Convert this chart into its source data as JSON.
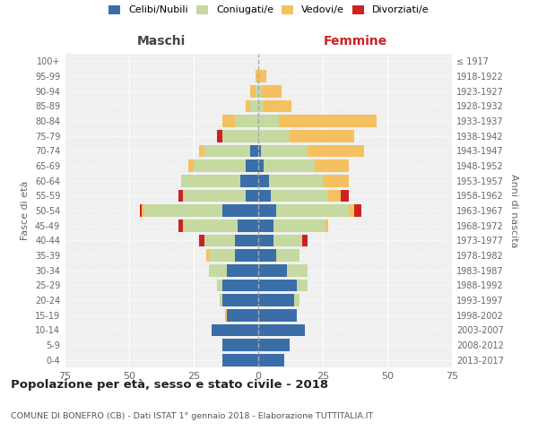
{
  "age_groups": [
    "0-4",
    "5-9",
    "10-14",
    "15-19",
    "20-24",
    "25-29",
    "30-34",
    "35-39",
    "40-44",
    "45-49",
    "50-54",
    "55-59",
    "60-64",
    "65-69",
    "70-74",
    "75-79",
    "80-84",
    "85-89",
    "90-94",
    "95-99",
    "100+"
  ],
  "birth_years": [
    "2013-2017",
    "2008-2012",
    "2003-2007",
    "1998-2002",
    "1993-1997",
    "1988-1992",
    "1983-1987",
    "1978-1982",
    "1973-1977",
    "1968-1972",
    "1963-1967",
    "1958-1962",
    "1953-1957",
    "1948-1952",
    "1943-1947",
    "1938-1942",
    "1933-1937",
    "1928-1932",
    "1923-1927",
    "1918-1922",
    "≤ 1917"
  ],
  "colors": {
    "celibi": "#3a6ea8",
    "coniugati": "#c5d9a0",
    "vedovi": "#f5c060",
    "divorziati": "#cc2222"
  },
  "maschi": {
    "celibi": [
      14,
      14,
      18,
      12,
      14,
      14,
      12,
      9,
      9,
      8,
      14,
      5,
      7,
      5,
      3,
      0,
      0,
      0,
      0,
      0,
      0
    ],
    "coniugati": [
      0,
      0,
      0,
      0,
      1,
      2,
      7,
      10,
      12,
      21,
      30,
      24,
      23,
      20,
      18,
      14,
      9,
      3,
      1,
      0,
      0
    ],
    "vedovi": [
      0,
      0,
      0,
      1,
      0,
      0,
      0,
      1,
      0,
      0,
      1,
      0,
      0,
      2,
      2,
      0,
      5,
      2,
      2,
      1,
      0
    ],
    "divorziati": [
      0,
      0,
      0,
      0,
      0,
      0,
      0,
      0,
      2,
      2,
      1,
      2,
      0,
      0,
      0,
      2,
      0,
      0,
      0,
      0,
      0
    ]
  },
  "femmine": {
    "nubili": [
      10,
      12,
      18,
      15,
      14,
      15,
      11,
      7,
      6,
      6,
      7,
      5,
      4,
      2,
      1,
      0,
      0,
      0,
      0,
      0,
      0
    ],
    "coniugate": [
      0,
      0,
      0,
      0,
      2,
      4,
      8,
      9,
      11,
      20,
      28,
      22,
      21,
      20,
      18,
      12,
      8,
      2,
      1,
      0,
      0
    ],
    "vedove": [
      0,
      0,
      0,
      0,
      0,
      0,
      0,
      0,
      0,
      1,
      2,
      5,
      10,
      13,
      22,
      25,
      38,
      11,
      8,
      3,
      0
    ],
    "divorziate": [
      0,
      0,
      0,
      0,
      0,
      0,
      0,
      0,
      2,
      0,
      3,
      3,
      0,
      0,
      0,
      0,
      0,
      0,
      0,
      0,
      0
    ]
  },
  "title": "Popolazione per età, sesso e stato civile - 2018",
  "subtitle": "COMUNE DI BONEFRO (CB) - Dati ISTAT 1° gennaio 2018 - Elaborazione TUTTITALIA.IT",
  "xlabel_left": "Maschi",
  "xlabel_right": "Femmine",
  "ylabel_left": "Fasce di età",
  "ylabel_right": "Anni di nascita",
  "xlim": 75,
  "legend_labels": [
    "Celibi/Nubili",
    "Coniugati/e",
    "Vedovi/e",
    "Divorziati/e"
  ],
  "background_color": "#ffffff",
  "plot_bg_color": "#f0f0f0",
  "grid_color": "#ffffff"
}
